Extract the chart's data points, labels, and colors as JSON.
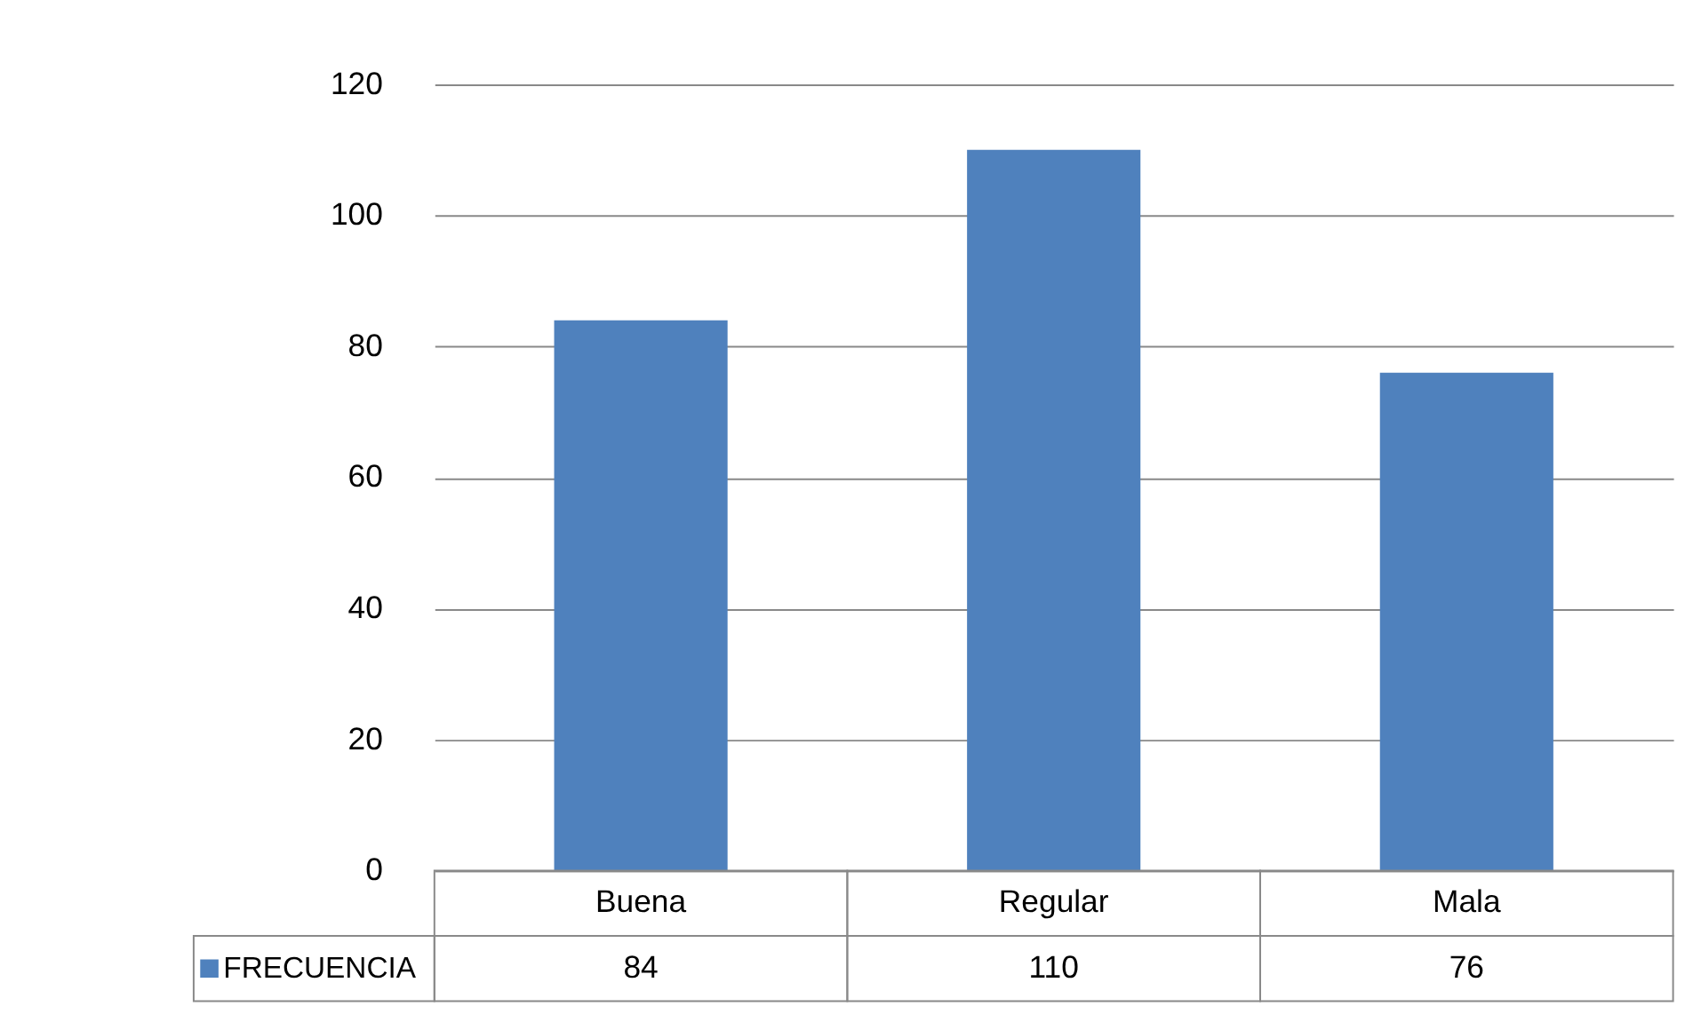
{
  "chart_data": {
    "type": "bar",
    "categories": [
      "Buena",
      "Regular",
      "Mala"
    ],
    "series": [
      {
        "name": "FRECUENCIA",
        "color": "#4f81bd",
        "values": [
          84,
          110,
          76
        ]
      }
    ],
    "ylim": [
      0,
      120
    ],
    "yticks": [
      0,
      20,
      40,
      60,
      80,
      100,
      120
    ],
    "grid": "y",
    "legend": "bottom left",
    "data_labels": true
  }
}
